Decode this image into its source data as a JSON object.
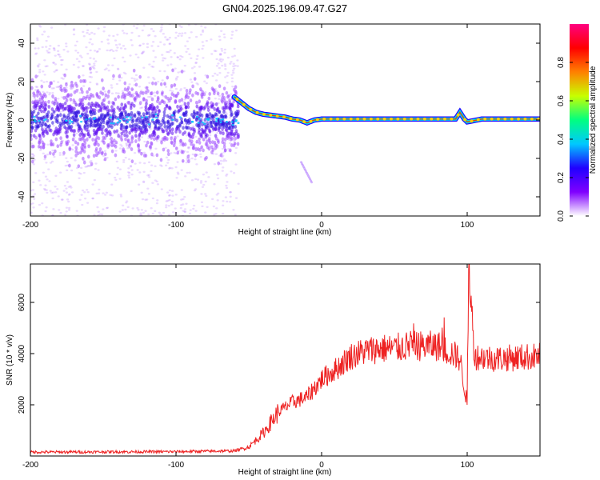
{
  "title": "GN04.2025.196.09.47.G27",
  "chart_data": [
    {
      "type": "heatmap",
      "name": "spectrogram",
      "xlabel": "Height of straight line (km)",
      "ylabel": "Frequency (Hz)",
      "xlim": [
        -200,
        150
      ],
      "ylim": [
        -50,
        50
      ],
      "xticks": [
        -200,
        -100,
        0,
        100
      ],
      "yticks": [
        -40,
        -20,
        0,
        20,
        40
      ],
      "colorbar": {
        "label": "Normalized spectral amplitude",
        "range": [
          0,
          1
        ],
        "ticks": [
          "0.0",
          "0.2",
          "0.4",
          "0.6",
          "0.8"
        ],
        "colors": [
          "#ffffff",
          "#8000ff",
          "#2000ff",
          "#00c8ff",
          "#00ff80",
          "#c8ff00",
          "#ff8000",
          "#ff0000",
          "#ff0080"
        ]
      },
      "ridge": {
        "x": [
          -60,
          -55,
          -50,
          -45,
          -40,
          -35,
          -30,
          -25,
          -20,
          -15,
          -10,
          -5,
          0,
          20,
          50,
          80,
          92,
          95,
          98,
          100,
          110,
          150
        ],
        "frequency": [
          12,
          9,
          6,
          4,
          3,
          2.5,
          2,
          1.5,
          0.5,
          0,
          -1.5,
          0,
          0.5,
          0.5,
          0.5,
          0.5,
          0.5,
          4,
          0.5,
          -1,
          0.5,
          0.5
        ]
      },
      "noise_region": {
        "x": [
          -200,
          -57
        ],
        "center_frequency": 0,
        "spread": 20
      }
    },
    {
      "type": "line",
      "name": "snr",
      "xlabel": "Height of straight line (km)",
      "ylabel": "SNR (10 * v/v)",
      "xlim": [
        -200,
        150
      ],
      "ylim": [
        0,
        7500
      ],
      "xticks": [
        -200,
        -100,
        0,
        100
      ],
      "yticks": [
        2000,
        4000,
        6000
      ],
      "color": "#ee2222",
      "trend": {
        "x": [
          -200,
          -150,
          -100,
          -60,
          -50,
          -40,
          -30,
          -20,
          -10,
          0,
          10,
          20,
          30,
          40,
          50,
          60,
          70,
          80,
          90,
          95,
          100,
          101,
          105,
          120,
          150
        ],
        "y": [
          150,
          160,
          170,
          200,
          350,
          900,
          1700,
          2100,
          2300,
          3000,
          3400,
          3900,
          4100,
          4200,
          4200,
          4300,
          4300,
          4300,
          4000,
          3800,
          2000,
          7500,
          3900,
          3800,
          3900
        ]
      }
    }
  ]
}
